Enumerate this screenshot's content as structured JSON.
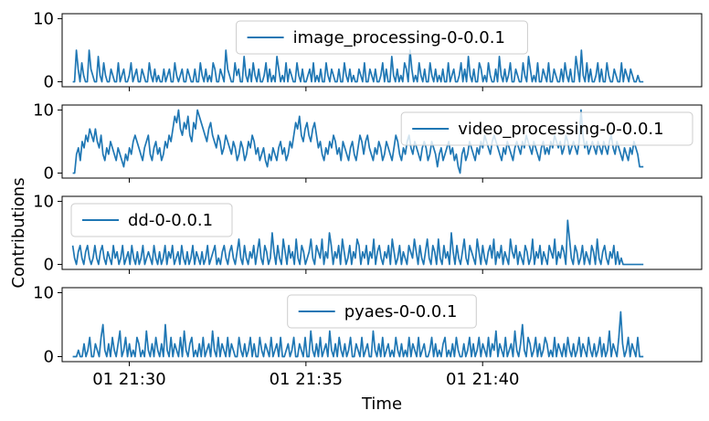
{
  "chart_data": {
    "type": "line",
    "xlabel": "Time",
    "ylabel": "Contributions",
    "shared_x": {
      "range_minutes": [
        -1.9,
        16.2
      ],
      "tick_positions_minutes": [
        0,
        5,
        10
      ],
      "tick_labels": [
        "01 21:30",
        "01 21:35",
        "01 21:40"
      ],
      "series_start_minutes": -1.6,
      "series_end_minutes": 14.55,
      "sample_step_minutes": 0.05
    },
    "ylim": [
      -0.5,
      10.5
    ],
    "yticks": [
      0,
      10
    ],
    "line_color": "#1f77b4",
    "panels": [
      {
        "name": "image_processing-0-0.0.1",
        "legend_position": "upper-center",
        "values": [
          0,
          0,
          5,
          2,
          0,
          3,
          1,
          0,
          0,
          5,
          2,
          1,
          0,
          0,
          4,
          1,
          0,
          3,
          1,
          0,
          0,
          2,
          1,
          0,
          0,
          3,
          0,
          1,
          2,
          0,
          0,
          1,
          3,
          0,
          1,
          2,
          0,
          0,
          2,
          1,
          0,
          0,
          3,
          1,
          0,
          2,
          0,
          1,
          0,
          0,
          2,
          0,
          1,
          2,
          0,
          0,
          3,
          1,
          0,
          1,
          2,
          0,
          0,
          2,
          1,
          0,
          0,
          2,
          0,
          0,
          3,
          1,
          0,
          2,
          0,
          1,
          0,
          3,
          2,
          0,
          0,
          2,
          1,
          0,
          5,
          2,
          1,
          0,
          0,
          3,
          1,
          2,
          0,
          0,
          4,
          1,
          0,
          2,
          0,
          3,
          1,
          0,
          2,
          0,
          0,
          1,
          3,
          0,
          2,
          0,
          1,
          0,
          4,
          2,
          0,
          1,
          0,
          3,
          0,
          2,
          1,
          0,
          0,
          3,
          1,
          0,
          2,
          0,
          0,
          1,
          2,
          0,
          3,
          0,
          1,
          0,
          2,
          0,
          0,
          3,
          1,
          0,
          2,
          1,
          0,
          0,
          2,
          0,
          0,
          3,
          1,
          0,
          2,
          0,
          1,
          0,
          0,
          2,
          1,
          0,
          3,
          0,
          0,
          2,
          1,
          0,
          2,
          0,
          0,
          1,
          3,
          0,
          2,
          0,
          0,
          4,
          1,
          0,
          2,
          0,
          1,
          0,
          3,
          2,
          0,
          5,
          2,
          0,
          1,
          0,
          3,
          1,
          0,
          2,
          0,
          0,
          3,
          1,
          0,
          2,
          0,
          1,
          0,
          2,
          0,
          0,
          3,
          0,
          1,
          2,
          0,
          0,
          1,
          3,
          0,
          2,
          0,
          4,
          1,
          0,
          2,
          0,
          0,
          3,
          2,
          0,
          1,
          0,
          3,
          1,
          0,
          0,
          2,
          0,
          4,
          1,
          0,
          2,
          0,
          1,
          3,
          0,
          0,
          2,
          1,
          0,
          0,
          3,
          1,
          0,
          4,
          2,
          0,
          1,
          0,
          3,
          0,
          0,
          2,
          1,
          0,
          3,
          0,
          0,
          2,
          1,
          0,
          0,
          2,
          0,
          3,
          1,
          0,
          2,
          0,
          0,
          4,
          2,
          0,
          5,
          1,
          0,
          3,
          0,
          2,
          0,
          0,
          1,
          3,
          0,
          2,
          0,
          0,
          3,
          1,
          0,
          0,
          2,
          1,
          0,
          0,
          3,
          0,
          2,
          1,
          0,
          2,
          1,
          0,
          0,
          1,
          0,
          0,
          0
        ]
      },
      {
        "name": "video_processing-0-0.0.1",
        "legend_position": "upper-right",
        "values": [
          0,
          0,
          3,
          4,
          2,
          5,
          4,
          6,
          5,
          7,
          6,
          5,
          7,
          5,
          4,
          6,
          3,
          2,
          4,
          3,
          5,
          4,
          3,
          2,
          4,
          3,
          2,
          1,
          3,
          2,
          4,
          3,
          5,
          6,
          5,
          4,
          3,
          2,
          4,
          5,
          6,
          3,
          2,
          4,
          5,
          3,
          4,
          2,
          3,
          5,
          4,
          6,
          5,
          7,
          9,
          8,
          10,
          7,
          6,
          8,
          7,
          9,
          6,
          5,
          8,
          7,
          10,
          9,
          8,
          7,
          6,
          5,
          7,
          8,
          6,
          5,
          4,
          6,
          5,
          3,
          4,
          6,
          5,
          4,
          3,
          5,
          4,
          2,
          3,
          5,
          4,
          2,
          3,
          5,
          4,
          6,
          5,
          3,
          4,
          2,
          3,
          4,
          2,
          1,
          3,
          2,
          4,
          3,
          2,
          4,
          5,
          3,
          4,
          2,
          3,
          5,
          4,
          6,
          8,
          7,
          9,
          6,
          5,
          7,
          8,
          6,
          5,
          7,
          8,
          6,
          4,
          5,
          3,
          2,
          4,
          3,
          5,
          4,
          6,
          5,
          3,
          4,
          2,
          5,
          4,
          3,
          2,
          4,
          5,
          3,
          2,
          4,
          6,
          5,
          3,
          5,
          6,
          4,
          3,
          2,
          4,
          3,
          5,
          4,
          2,
          3,
          5,
          4,
          3,
          2,
          4,
          6,
          5,
          3,
          2,
          4,
          3,
          5,
          6,
          4,
          3,
          5,
          4,
          3,
          2,
          4,
          5,
          4,
          2,
          3,
          5,
          4,
          3,
          1,
          3,
          4,
          2,
          3,
          4,
          5,
          3,
          4,
          2,
          3,
          1,
          0,
          3,
          4,
          2,
          3,
          5,
          4,
          3,
          2,
          4,
          3,
          5,
          4,
          6,
          5,
          4,
          3,
          5,
          6,
          5,
          4,
          3,
          2,
          4,
          3,
          5,
          4,
          3,
          2,
          4,
          5,
          4,
          3,
          5,
          4,
          6,
          5,
          4,
          3,
          5,
          4,
          3,
          2,
          4,
          5,
          3,
          4,
          3,
          5,
          4,
          6,
          5,
          4,
          5,
          3,
          4,
          6,
          5,
          3,
          4,
          5,
          4,
          3,
          5,
          10,
          6,
          4,
          5,
          3,
          4,
          5,
          4,
          3,
          5,
          4,
          3,
          5,
          4,
          3,
          5,
          6,
          4,
          3,
          5,
          4,
          3,
          2,
          4,
          3,
          2,
          4,
          3,
          5,
          4,
          3,
          1,
          1,
          1
        ]
      },
      {
        "name": "dd-0-0.0.1",
        "legend_position": "upper-left",
        "values": [
          3,
          1,
          0,
          2,
          3,
          1,
          0,
          2,
          3,
          1,
          0,
          1,
          3,
          1,
          0,
          2,
          3,
          1,
          0,
          2,
          1,
          0,
          3,
          1,
          2,
          0,
          1,
          3,
          0,
          1,
          2,
          0,
          3,
          1,
          0,
          2,
          0,
          1,
          3,
          0,
          1,
          2,
          1,
          0,
          3,
          1,
          0,
          2,
          0,
          1,
          3,
          0,
          2,
          1,
          3,
          0,
          1,
          2,
          0,
          3,
          1,
          0,
          2,
          0,
          1,
          3,
          0,
          2,
          1,
          0,
          2,
          0,
          1,
          3,
          0,
          1,
          2,
          3,
          0,
          1,
          0,
          2,
          3,
          1,
          0,
          2,
          3,
          1,
          0,
          2,
          4,
          1,
          0,
          3,
          1,
          0,
          2,
          1,
          3,
          0,
          2,
          4,
          1,
          0,
          3,
          2,
          0,
          1,
          5,
          2,
          0,
          3,
          1,
          0,
          4,
          2,
          0,
          3,
          1,
          2,
          0,
          4,
          1,
          0,
          3,
          2,
          0,
          1,
          2,
          4,
          1,
          0,
          3,
          2,
          1,
          4,
          0,
          2,
          1,
          5,
          3,
          0,
          2,
          1,
          3,
          0,
          4,
          2,
          0,
          1,
          3,
          0,
          2,
          1,
          4,
          3,
          0,
          2,
          1,
          3,
          0,
          2,
          1,
          4,
          0,
          2,
          3,
          1,
          0,
          2,
          1,
          3,
          0,
          4,
          2,
          0,
          1,
          3,
          0,
          2,
          1,
          0,
          3,
          2,
          1,
          4,
          2,
          0,
          3,
          1,
          0,
          2,
          4,
          1,
          0,
          3,
          2,
          0,
          4,
          1,
          0,
          3,
          1,
          2,
          0,
          5,
          2,
          0,
          3,
          1,
          0,
          2,
          4,
          1,
          0,
          3,
          2,
          1,
          0,
          4,
          2,
          0,
          3,
          1,
          0,
          2,
          3,
          1,
          4,
          0,
          2,
          1,
          3,
          0,
          2,
          1,
          0,
          4,
          2,
          1,
          3,
          0,
          2,
          1,
          0,
          3,
          2,
          0,
          1,
          4,
          0,
          2,
          1,
          3,
          0,
          2,
          1,
          0,
          3,
          2,
          1,
          4,
          0,
          2,
          1,
          3,
          2,
          0,
          7,
          4,
          1,
          0,
          3,
          2,
          0,
          1,
          3,
          0,
          2,
          1,
          0,
          3,
          2,
          0,
          4,
          1,
          0,
          2,
          3,
          1,
          0,
          2,
          1,
          3,
          0,
          2,
          0,
          1,
          0,
          0,
          0,
          0,
          0,
          0,
          0,
          0,
          0,
          0,
          0,
          0
        ]
      },
      {
        "name": "pyaes-0-0.0.1",
        "legend_position": "upper-center",
        "values": [
          0,
          0,
          0,
          1,
          0,
          0,
          2,
          0,
          1,
          3,
          0,
          0,
          2,
          1,
          0,
          3,
          5,
          1,
          0,
          2,
          0,
          3,
          1,
          0,
          2,
          4,
          0,
          1,
          3,
          0,
          2,
          0,
          1,
          0,
          3,
          2,
          0,
          1,
          0,
          4,
          1,
          0,
          2,
          0,
          3,
          1,
          0,
          2,
          0,
          5,
          1,
          0,
          3,
          0,
          2,
          1,
          0,
          3,
          0,
          4,
          1,
          0,
          2,
          3,
          0,
          1,
          0,
          2,
          0,
          3,
          0,
          1,
          2,
          0,
          4,
          1,
          0,
          3,
          0,
          2,
          1,
          0,
          3,
          0,
          2,
          1,
          0,
          0,
          3,
          1,
          0,
          2,
          0,
          1,
          3,
          0,
          2,
          0,
          0,
          3,
          1,
          0,
          2,
          1,
          0,
          3,
          0,
          1,
          2,
          0,
          3,
          0,
          0,
          1,
          2,
          0,
          1,
          3,
          0,
          0,
          2,
          1,
          0,
          3,
          0,
          0,
          4,
          1,
          0,
          2,
          0,
          3,
          0,
          1,
          2,
          0,
          4,
          1,
          0,
          2,
          0,
          3,
          1,
          0,
          2,
          0,
          1,
          3,
          0,
          0,
          2,
          1,
          0,
          3,
          0,
          1,
          2,
          0,
          0,
          4,
          1,
          0,
          2,
          0,
          3,
          0,
          1,
          2,
          0,
          1,
          0,
          3,
          1,
          0,
          2,
          0,
          1,
          0,
          3,
          0,
          2,
          1,
          0,
          3,
          0,
          1,
          2,
          0,
          0,
          1,
          3,
          0,
          2,
          0,
          1,
          0,
          2,
          3,
          0,
          1,
          0,
          2,
          0,
          3,
          1,
          0,
          0,
          2,
          0,
          1,
          3,
          0,
          2,
          0,
          1,
          3,
          0,
          2,
          1,
          0,
          3,
          0,
          2,
          1,
          4,
          0,
          2,
          1,
          0,
          3,
          0,
          1,
          2,
          0,
          4,
          1,
          0,
          2,
          5,
          1,
          0,
          3,
          2,
          0,
          1,
          3,
          0,
          2,
          0,
          1,
          3,
          2,
          0,
          1,
          0,
          3,
          0,
          2,
          1,
          0,
          2,
          0,
          3,
          1,
          0,
          2,
          0,
          1,
          3,
          0,
          2,
          1,
          0,
          3,
          1,
          0,
          2,
          0,
          1,
          3,
          0,
          2,
          0,
          1,
          4,
          0,
          2,
          1,
          0,
          3,
          7,
          2,
          0,
          1,
          3,
          0,
          2,
          1,
          0,
          3,
          0,
          0,
          0
        ]
      }
    ]
  }
}
